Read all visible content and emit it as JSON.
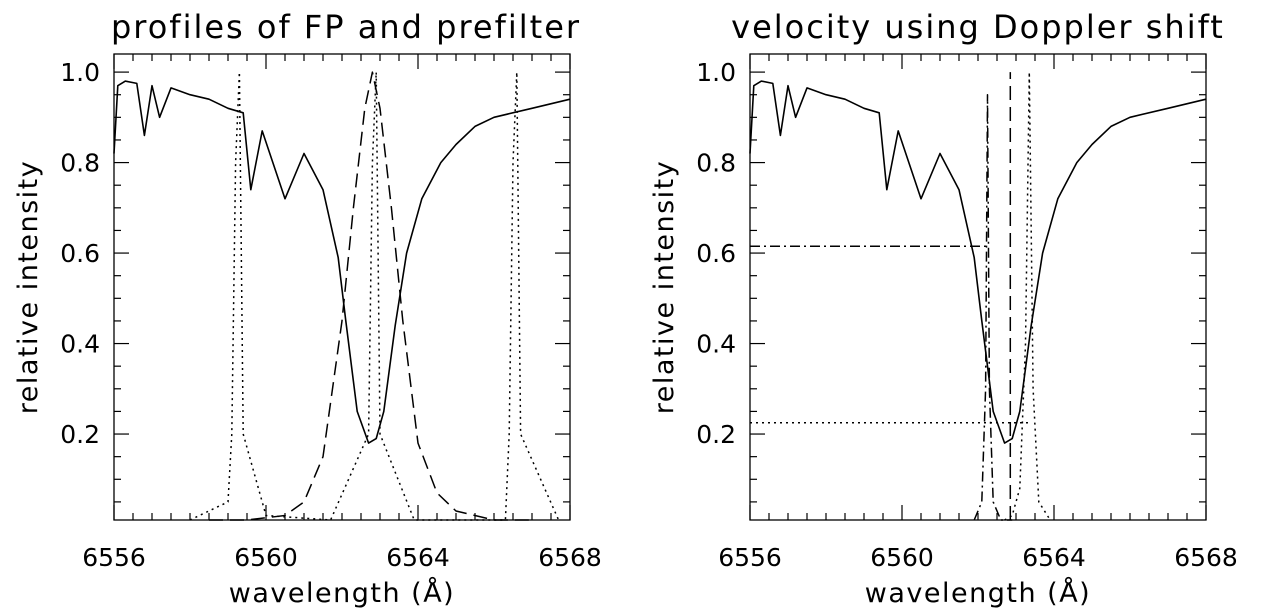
{
  "chart_data": [
    {
      "type": "line",
      "title": "profiles of FP and prefilter",
      "xlabel": "wavelength (Å)",
      "ylabel": "relative intensity",
      "xlim": [
        6556,
        6568
      ],
      "ylim": [
        0.01,
        1.04
      ],
      "xticks": [
        "6556",
        "6560",
        "6564",
        "6568"
      ],
      "yticks": [
        "0.2",
        "0.4",
        "0.6",
        "0.8",
        "1.0"
      ],
      "series": [
        {
          "style": "solid",
          "x": [
            6556.0,
            6556.1,
            6556.3,
            6556.6,
            6556.8,
            6557.0,
            6557.2,
            6557.5,
            6558.0,
            6558.5,
            6559.0,
            6559.4,
            6559.6,
            6559.9,
            6560.5,
            6561.0,
            6561.5,
            6561.9,
            6562.1,
            6562.4,
            6562.7,
            6562.9,
            6563.1,
            6563.4,
            6563.7,
            6564.1,
            6564.6,
            6565.0,
            6565.5,
            6566.0,
            6567.0,
            6568.0
          ],
          "y": [
            0.82,
            0.97,
            0.98,
            0.975,
            0.86,
            0.97,
            0.9,
            0.965,
            0.95,
            0.94,
            0.92,
            0.91,
            0.74,
            0.87,
            0.72,
            0.82,
            0.74,
            0.59,
            0.45,
            0.25,
            0.18,
            0.19,
            0.25,
            0.44,
            0.6,
            0.72,
            0.8,
            0.84,
            0.88,
            0.9,
            0.92,
            0.94
          ]
        },
        {
          "style": "dotted",
          "x": [
            6558.0,
            6559.0,
            6559.1,
            6559.2,
            6559.3,
            6559.4,
            6560.0,
            6561.7,
            6562.7,
            6562.8,
            6562.9,
            6563.0,
            6563.9,
            6566.3,
            6566.4,
            6566.5,
            6566.6,
            6566.7,
            6567.7
          ],
          "y": [
            0.01,
            0.05,
            0.2,
            0.8,
            1.0,
            0.2,
            0.02,
            0.01,
            0.2,
            0.8,
            1.0,
            0.2,
            0.01,
            0.01,
            0.2,
            0.8,
            1.0,
            0.2,
            0.01
          ]
        },
        {
          "style": "dashed",
          "x": [
            6558.5,
            6559.5,
            6560.5,
            6561.0,
            6561.5,
            6562.0,
            6562.3,
            6562.6,
            6562.8,
            6563.0,
            6563.3,
            6563.6,
            6564.0,
            6564.5,
            6565.0,
            6566.0,
            6567.0
          ],
          "y": [
            0.01,
            0.01,
            0.02,
            0.05,
            0.15,
            0.45,
            0.7,
            0.92,
            1.0,
            0.92,
            0.7,
            0.45,
            0.18,
            0.07,
            0.03,
            0.01,
            0.01
          ]
        }
      ]
    },
    {
      "type": "line",
      "title": "velocity using Doppler shift",
      "xlabel": "wavelength (Å)",
      "ylabel": "relative intensity",
      "xlim": [
        6556,
        6568
      ],
      "ylim": [
        0.01,
        1.04
      ],
      "xticks": [
        "6556",
        "6560",
        "6564",
        "6568"
      ],
      "yticks": [
        "0.2",
        "0.4",
        "0.6",
        "0.8",
        "1.0"
      ],
      "series": [
        {
          "style": "solid",
          "x": [
            6556.0,
            6556.1,
            6556.3,
            6556.6,
            6556.8,
            6557.0,
            6557.2,
            6557.5,
            6558.0,
            6558.5,
            6559.0,
            6559.4,
            6559.6,
            6559.9,
            6560.5,
            6561.0,
            6561.5,
            6561.9,
            6562.1,
            6562.4,
            6562.7,
            6562.9,
            6563.1,
            6563.4,
            6563.7,
            6564.1,
            6564.6,
            6565.0,
            6565.5,
            6566.0,
            6567.0,
            6568.0
          ],
          "y": [
            0.82,
            0.97,
            0.98,
            0.975,
            0.86,
            0.97,
            0.9,
            0.965,
            0.95,
            0.94,
            0.92,
            0.91,
            0.74,
            0.87,
            0.72,
            0.82,
            0.74,
            0.59,
            0.45,
            0.25,
            0.18,
            0.19,
            0.25,
            0.44,
            0.6,
            0.72,
            0.8,
            0.84,
            0.88,
            0.9,
            0.92,
            0.94
          ]
        },
        {
          "style": "dashdot",
          "x": [
            6561.9,
            6562.1,
            6562.2,
            6562.25,
            6562.3,
            6562.4,
            6562.6,
            6562.9
          ],
          "y": [
            0.01,
            0.05,
            0.3,
            0.95,
            0.3,
            0.05,
            0.01,
            0.01
          ]
        },
        {
          "style": "dotted",
          "x": [
            6562.7,
            6562.9,
            6563.1,
            6563.25,
            6563.35,
            6563.45,
            6563.6,
            6563.9
          ],
          "y": [
            0.01,
            0.02,
            0.08,
            0.4,
            1.0,
            0.3,
            0.05,
            0.01
          ]
        },
        {
          "style": "dashed",
          "x": [
            6562.85,
            6562.85
          ],
          "y": [
            0.01,
            1.0
          ]
        },
        {
          "style": "dashdot",
          "x": [
            6556.0,
            6562.25
          ],
          "y": [
            0.615,
            0.615
          ]
        },
        {
          "style": "dotted",
          "x": [
            6556.0,
            6563.35
          ],
          "y": [
            0.225,
            0.225
          ]
        }
      ]
    }
  ]
}
